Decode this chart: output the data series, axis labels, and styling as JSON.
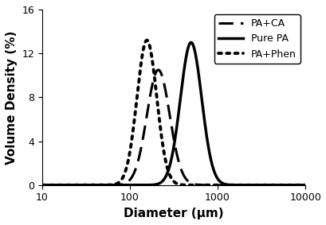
{
  "title": "",
  "xlabel": "Diameter (μm)",
  "ylabel": "Volume Density (%)",
  "xlim": [
    10,
    10000
  ],
  "ylim": [
    0,
    16
  ],
  "yticks": [
    0,
    4,
    8,
    12,
    16
  ],
  "xticks": [
    10,
    100,
    1000,
    10000
  ],
  "xticklabels": [
    "10",
    "100",
    "1000",
    "10000"
  ],
  "pure_pa": {
    "mean_log": 6.21,
    "std_log": 0.28,
    "scale": 13.0,
    "label": "Pure PA",
    "linestyle": "solid",
    "linewidth": 2.5,
    "color": "black"
  },
  "pa_ca": {
    "mean_log": 5.35,
    "std_log": 0.3,
    "scale": 10.5,
    "label": "PA+CA",
    "linestyle": "dashed",
    "linewidth": 2.2,
    "color": "black",
    "dashes": [
      6,
      3
    ]
  },
  "pa_phen": {
    "mean_log": 5.05,
    "std_log": 0.26,
    "scale": 13.2,
    "label": "PA+Phen",
    "linestyle": "dotted",
    "linewidth": 2.8,
    "color": "black",
    "dotsize": 2.5
  },
  "legend_loc": "upper right",
  "legend_fontsize": 9,
  "axis_fontsize": 11,
  "tick_fontsize": 9,
  "background_color": "#ffffff"
}
